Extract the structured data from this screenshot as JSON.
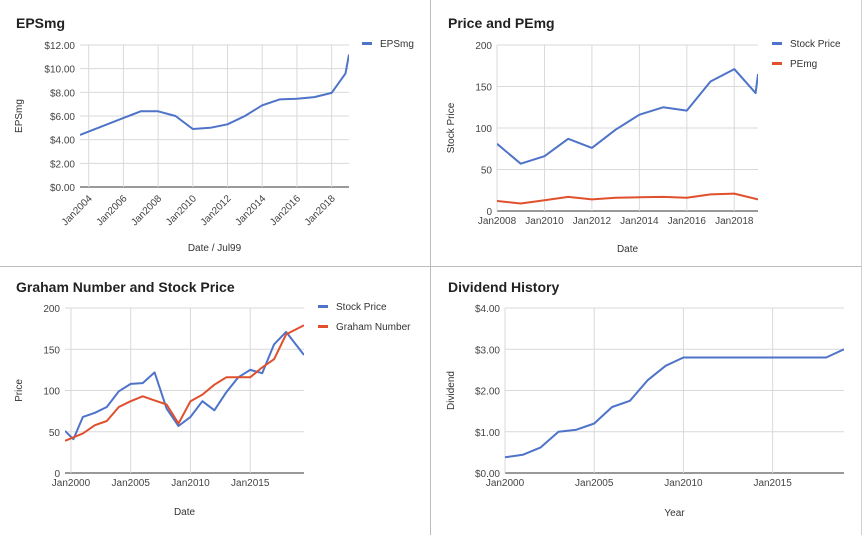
{
  "charts": [
    {
      "type": "line",
      "title": "EPSmg",
      "xlabel": "Date / Jul99",
      "ylabel": "EPSmg",
      "x_type": "year",
      "xlim": [
        2003.5,
        2019.0
      ],
      "ylim": [
        0,
        12
      ],
      "y_ticks": [
        0,
        2,
        4,
        6,
        8,
        10,
        12
      ],
      "y_tick_labels": [
        "$0.00",
        "$2.00",
        "$4.00",
        "$6.00",
        "$8.00",
        "$10.00",
        "$12.00"
      ],
      "x_ticks": [
        2004,
        2006,
        2008,
        2010,
        2012,
        2014,
        2016,
        2018
      ],
      "x_tick_labels": [
        "Jan2004",
        "Jan2006",
        "Jan2008",
        "Jan2010",
        "Jan2012",
        "Jan2014",
        "Jan2016",
        "Jan2018"
      ],
      "x_label_rotation": -45,
      "grid": true,
      "legend": "top-right",
      "series": [
        {
          "name": "EPSmg",
          "color": "#4e73c9",
          "x": [
            2003.5,
            2007.0,
            2008.0,
            2009.0,
            2010.0,
            2011.0,
            2012.0,
            2013.0,
            2014.0,
            2015.0,
            2016.0,
            2017.0,
            2018.0,
            2018.8,
            2019.0
          ],
          "y": [
            4.4,
            6.4,
            6.4,
            6.0,
            4.9,
            5.0,
            5.3,
            6.0,
            6.9,
            7.4,
            7.45,
            7.6,
            7.95,
            9.6,
            11.2
          ]
        }
      ]
    },
    {
      "type": "line",
      "title": "Price and PEmg",
      "xlabel": "Date",
      "ylabel": "Stock Price",
      "x_type": "year",
      "xlim": [
        2008,
        2019.0
      ],
      "ylim": [
        0,
        200
      ],
      "y_ticks": [
        0,
        50,
        100,
        150,
        200
      ],
      "y_tick_labels": [
        "0",
        "50",
        "100",
        "150",
        "200"
      ],
      "x_ticks": [
        2008,
        2010,
        2012,
        2014,
        2016,
        2018
      ],
      "x_tick_labels": [
        "Jan2008",
        "Jan2010",
        "Jan2012",
        "Jan2014",
        "Jan2016",
        "Jan2018"
      ],
      "x_label_rotation": 0,
      "grid": true,
      "legend": "top-right",
      "series": [
        {
          "name": "Stock Price",
          "color": "#4e73c9",
          "x": [
            2008,
            2009,
            2010,
            2011,
            2012,
            2013,
            2014,
            2015,
            2016,
            2017,
            2018,
            2018.9,
            2019.0
          ],
          "y": [
            81,
            57,
            66,
            87,
            76,
            98,
            116,
            125,
            121,
            156,
            171,
            142,
            165
          ]
        },
        {
          "name": "PEmg",
          "color": "#e0502d",
          "x": [
            2008,
            2009,
            2010,
            2011,
            2012,
            2013,
            2014,
            2015,
            2016,
            2017,
            2018,
            2019.0
          ],
          "y": [
            12,
            9,
            13,
            17,
            14,
            16,
            16.5,
            17,
            16,
            20,
            21,
            14
          ]
        }
      ]
    },
    {
      "type": "line",
      "title": "Graham Number and Stock Price",
      "xlabel": "Date",
      "ylabel": "Price",
      "x_type": "year",
      "xlim": [
        1999.5,
        2019.5
      ],
      "ylim": [
        0,
        200
      ],
      "y_ticks": [
        0,
        50,
        100,
        150,
        200
      ],
      "y_tick_labels": [
        "0",
        "50",
        "100",
        "150",
        "200"
      ],
      "x_ticks": [
        2000,
        2005,
        2010,
        2015
      ],
      "x_tick_labels": [
        "Jan2000",
        "Jan2005",
        "Jan2010",
        "Jan2015"
      ],
      "x_label_rotation": 0,
      "grid": true,
      "legend": "top-right",
      "series": [
        {
          "name": "Stock Price",
          "color": "#4e73c9",
          "x": [
            1999.5,
            2000.2,
            2001,
            2002,
            2003,
            2004,
            2005,
            2006,
            2007,
            2008,
            2009,
            2010,
            2011,
            2012,
            2013,
            2014,
            2015,
            2016,
            2017,
            2018,
            2019.5
          ],
          "y": [
            51,
            41,
            68,
            73,
            80,
            99,
            108,
            109,
            122,
            78,
            57,
            68,
            87,
            76,
            98,
            116,
            125,
            121,
            156,
            171,
            143
          ]
        },
        {
          "name": "Graham Number",
          "color": "#e0502d",
          "x": [
            1999.5,
            2001,
            2002,
            2003,
            2004,
            2005,
            2006,
            2007,
            2008,
            2009,
            2010,
            2011,
            2012,
            2013,
            2014,
            2015,
            2016,
            2017,
            2018,
            2019.5
          ],
          "y": [
            39,
            48,
            58,
            63,
            80,
            87,
            93,
            88,
            83,
            60,
            87,
            95,
            107,
            116,
            116,
            116,
            128,
            138,
            168,
            179
          ]
        }
      ]
    },
    {
      "type": "line",
      "title": "Dividend History",
      "xlabel": "Year",
      "ylabel": "Dividend",
      "x_type": "year",
      "xlim": [
        2000,
        2019.0
      ],
      "ylim": [
        0,
        4
      ],
      "y_ticks": [
        0,
        1,
        2,
        3,
        4
      ],
      "y_tick_labels": [
        "$0.00",
        "$1.00",
        "$2.00",
        "$3.00",
        "$4.00"
      ],
      "x_ticks": [
        2000,
        2005,
        2010,
        2015
      ],
      "x_tick_labels": [
        "Jan2000",
        "Jan2005",
        "Jan2010",
        "Jan2015"
      ],
      "x_label_rotation": 0,
      "grid": true,
      "legend": "none",
      "series": [
        {
          "name": "",
          "color": "#4e73c9",
          "x": [
            2000,
            2001,
            2002,
            2003,
            2004,
            2005,
            2006,
            2007,
            2008,
            2009,
            2010,
            2011,
            2012,
            2013,
            2014,
            2015,
            2016,
            2017,
            2018,
            2019.0
          ],
          "y": [
            0.38,
            0.44,
            0.62,
            1.0,
            1.05,
            1.2,
            1.6,
            1.75,
            2.25,
            2.6,
            2.8,
            2.8,
            2.8,
            2.8,
            2.8,
            2.8,
            2.8,
            2.8,
            2.8,
            3.0
          ]
        }
      ]
    }
  ]
}
